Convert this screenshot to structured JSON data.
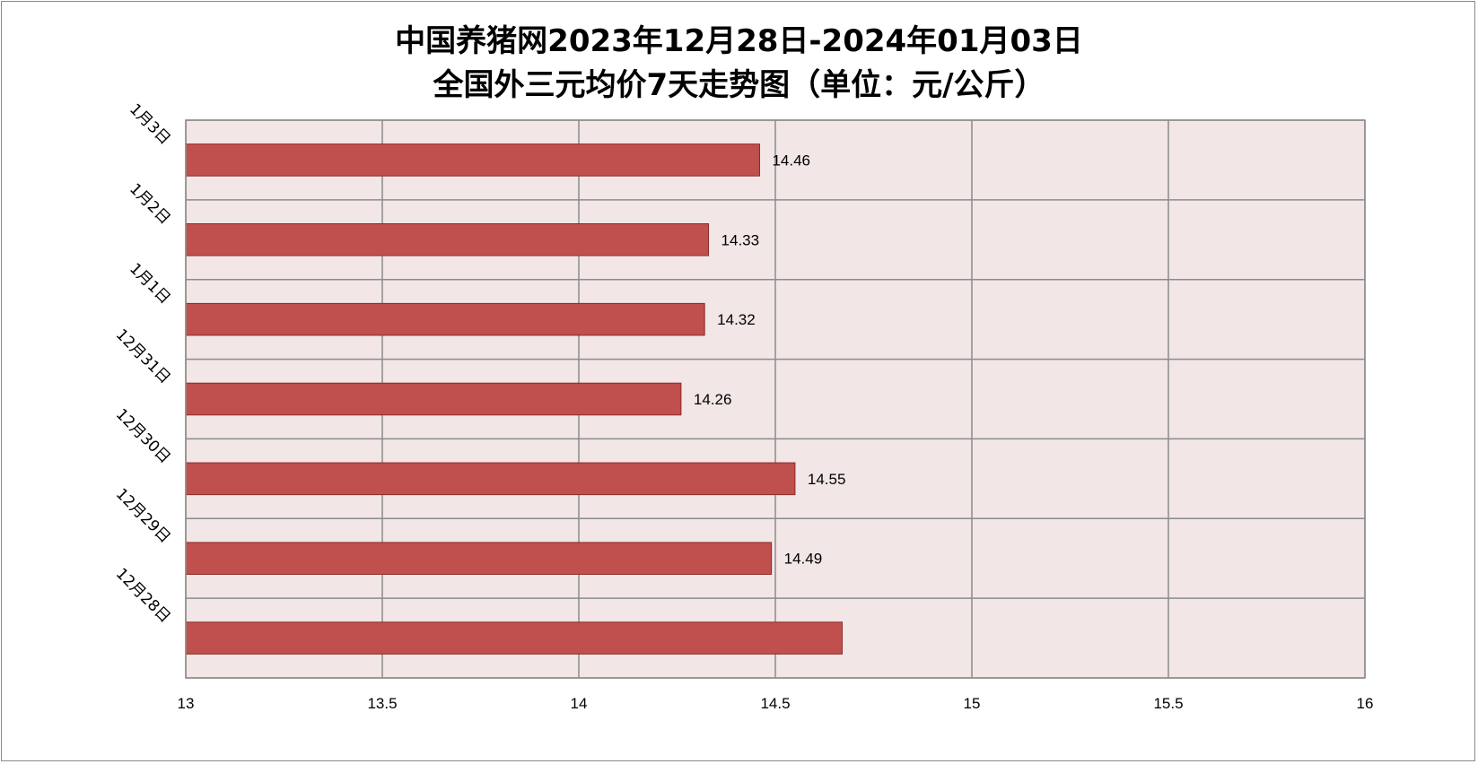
{
  "chart_data": {
    "type": "bar",
    "orientation": "horizontal",
    "title_lines": [
      "中国养猪网2023年12月28日-2024年01月03日",
      "全国外三元均价7天走势图（单位：元/公斤）"
    ],
    "categories": [
      "12月28日",
      "12月29日",
      "12月30日",
      "12月31日",
      "1月1日",
      "1月2日",
      "1月3日"
    ],
    "values": [
      14.67,
      14.49,
      14.55,
      14.26,
      14.32,
      14.33,
      14.46
    ],
    "data_labels": [
      "",
      "14.49",
      "14.55",
      "14.26",
      "14.32",
      "14.33",
      "14.46"
    ],
    "xlim": [
      13,
      16
    ],
    "x_ticks": [
      "13",
      "13.5",
      "14",
      "14.5",
      "15",
      "15.5",
      "16"
    ],
    "x_tick_values": [
      13,
      13.5,
      14,
      14.5,
      15,
      15.5,
      16
    ],
    "grid": true,
    "legend": "none",
    "colors": {
      "bar_fill": "#c0504d",
      "bar_stroke": "#8c2b28",
      "plot_background": "#f2e6e6",
      "grid": "#8c8c8c"
    }
  }
}
